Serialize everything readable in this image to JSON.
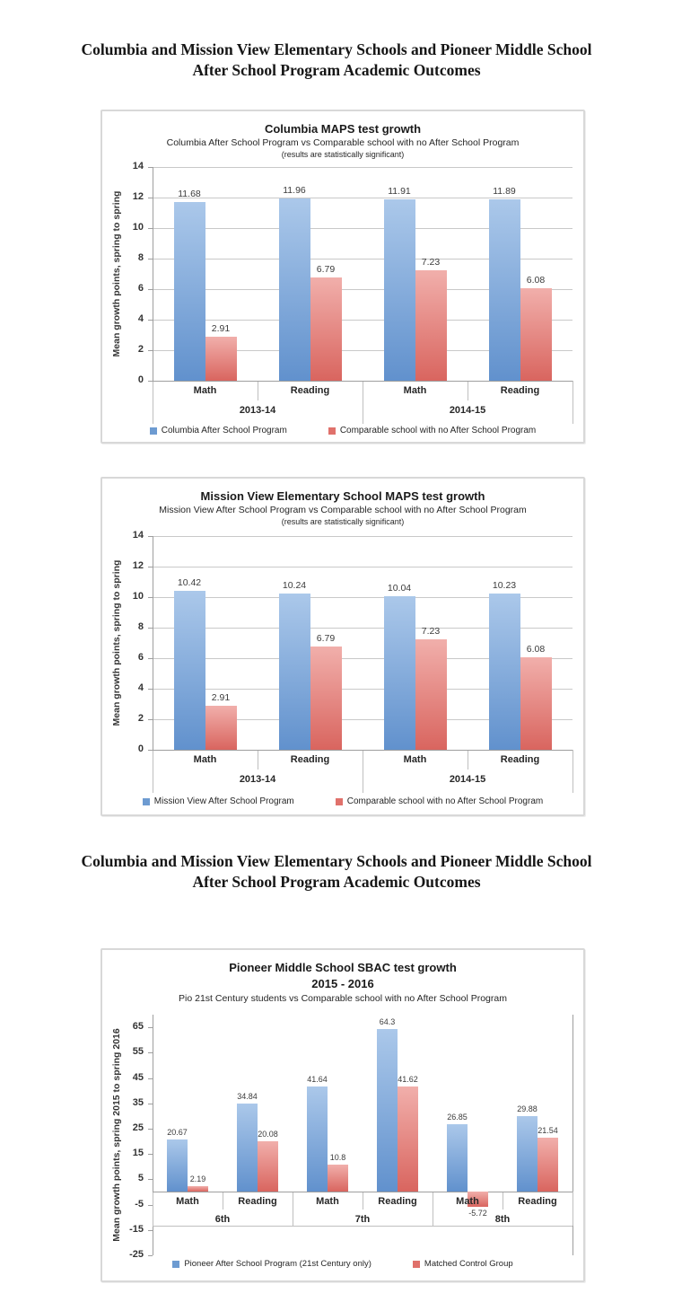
{
  "page": {
    "title_line1": "Columbia and Mission View Elementary Schools and Pioneer Middle School",
    "title_line2": "After School Program Academic Outcomes"
  },
  "colors": {
    "bar_blue_top": "#abc8ea",
    "bar_blue_bottom": "#6191cd",
    "bar_red_top": "#f1afab",
    "bar_red_bottom": "#d9655f",
    "legend_blue": "#6d9bd1",
    "legend_red": "#e0716b",
    "gridline": "#c9c9c9",
    "axis": "#9e9e9e"
  },
  "chart_data": [
    {
      "type": "bar",
      "title": "Columbia MAPS test growth",
      "subtitle": "Columbia After School Program vs Comparable school with no After School Program",
      "note": "(results are statistically significant)",
      "ylabel": "Mean growth points, spring to spring",
      "ylim": [
        0,
        14
      ],
      "yticks": [
        14,
        12,
        10,
        8,
        6,
        4,
        2,
        0
      ],
      "grid": true,
      "legend_position": "bottom",
      "group_labels": [
        "2013-14",
        "2014-15"
      ],
      "categories": [
        "Math",
        "Reading",
        "Math",
        "Reading"
      ],
      "series": [
        {
          "name": "Columbia After School Program",
          "color": "blue",
          "values": [
            11.68,
            11.96,
            11.91,
            11.89
          ]
        },
        {
          "name": "Comparable school with no After School Program",
          "color": "red",
          "values": [
            2.91,
            6.79,
            7.23,
            6.08
          ]
        }
      ]
    },
    {
      "type": "bar",
      "title": "Mission View Elementary School MAPS test growth",
      "subtitle": "Mission View After School Program vs Comparable school with no After School Program",
      "note": "(results are statistically significant)",
      "ylabel": "Mean growth points, spring to spring",
      "ylim": [
        0,
        14
      ],
      "yticks": [
        14,
        12,
        10,
        8,
        6,
        4,
        2,
        0
      ],
      "grid": true,
      "legend_position": "bottom",
      "group_labels": [
        "2013-14",
        "2014-15"
      ],
      "categories": [
        "Math",
        "Reading",
        "Math",
        "Reading"
      ],
      "series": [
        {
          "name": "Mission View After School Program",
          "color": "blue",
          "values": [
            10.42,
            10.24,
            10.04,
            10.23
          ]
        },
        {
          "name": "Comparable school with no After School Program",
          "color": "red",
          "values": [
            2.91,
            6.79,
            7.23,
            6.08
          ]
        }
      ]
    },
    {
      "type": "bar",
      "title": "Pioneer Middle School SBAC test growth",
      "title_line2": "2015 - 2016",
      "subtitle": "Pio 21st Century students vs Comparable school with no After School Program",
      "ylabel": "Mean growth points, spring 2015 to spring 2016",
      "ylim": [
        -25,
        70
      ],
      "yticks": [
        65,
        55,
        45,
        35,
        25,
        15,
        5,
        -5,
        -15,
        -25
      ],
      "grid": false,
      "legend_position": "bottom",
      "group_labels": [
        "6th",
        "7th",
        "8th"
      ],
      "categories": [
        "Math",
        "Reading",
        "Math",
        "Reading",
        "Math",
        "Reading"
      ],
      "series": [
        {
          "name": "Pioneer After School Program (21st Century only)",
          "color": "blue",
          "values": [
            20.67,
            34.84,
            41.64,
            64.3,
            26.85,
            29.88
          ]
        },
        {
          "name": "Matched Control Group",
          "color": "red",
          "values": [
            2.19,
            20.08,
            10.8,
            41.62,
            -5.72,
            21.54
          ]
        }
      ]
    }
  ]
}
